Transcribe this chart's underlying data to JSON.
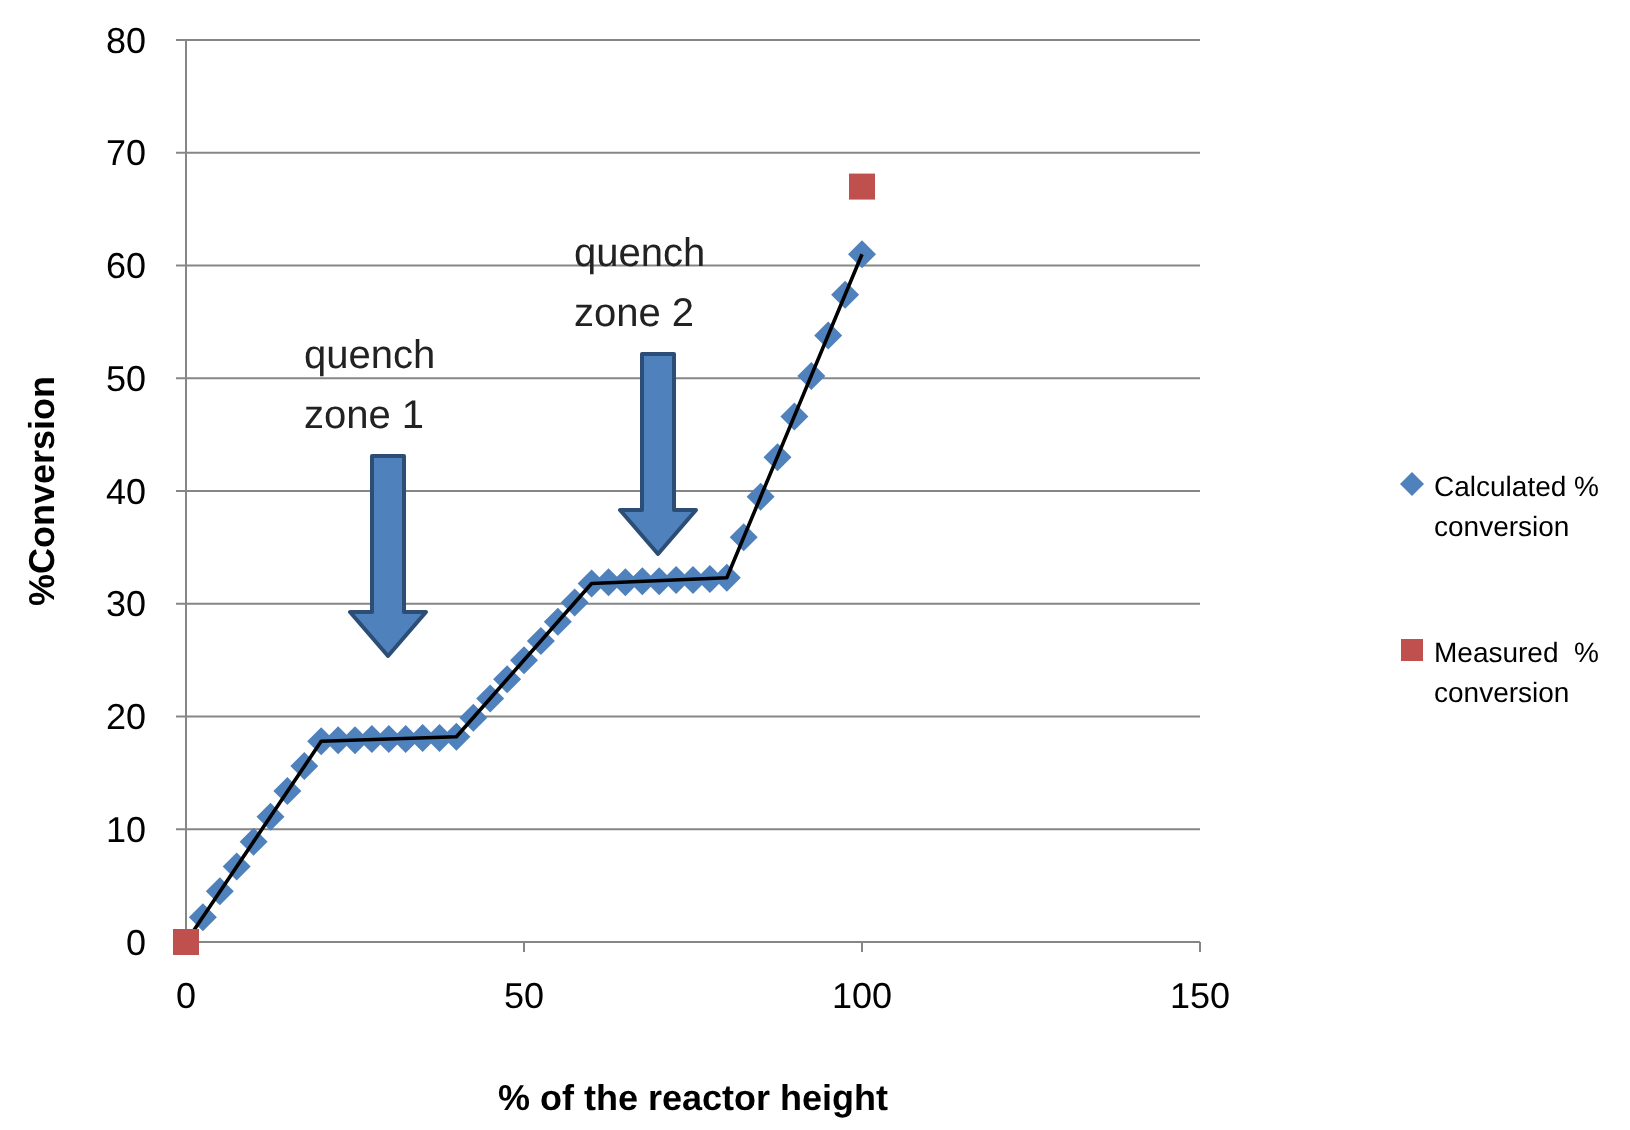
{
  "chart_data": {
    "type": "scatter",
    "xlabel": "% of the reactor height",
    "ylabel": "%Conversion",
    "xlim": [
      0,
      150
    ],
    "xticks": [
      0,
      50,
      100,
      150
    ],
    "ylim": [
      0,
      80
    ],
    "yticks": [
      0,
      10,
      20,
      30,
      40,
      50,
      60,
      70,
      80
    ],
    "grid": "y",
    "legend": "right",
    "series": [
      {
        "name": "Calculated % conversion",
        "marker": "diamond",
        "color": "#4f81bd",
        "x": [
          2.5,
          5,
          7.5,
          10,
          12.5,
          15,
          17.5,
          20,
          22.5,
          25,
          27.5,
          30,
          32.5,
          35,
          37.5,
          40,
          42.5,
          45,
          47.5,
          50,
          52.5,
          55,
          57.5,
          60,
          62.5,
          65,
          67.5,
          70,
          72.5,
          75,
          77.5,
          80,
          82.5,
          85,
          87.5,
          90,
          92.5,
          95,
          97.5,
          100
        ],
        "values": [
          2.2,
          4.5,
          6.7,
          8.9,
          11.1,
          13.4,
          15.6,
          17.8,
          17.9,
          17.9,
          18,
          18,
          18,
          18.1,
          18.1,
          18.2,
          19.9,
          21.6,
          23.3,
          25,
          26.7,
          28.4,
          30.1,
          31.8,
          31.9,
          31.9,
          32,
          32,
          32.1,
          32.1,
          32.2,
          32.3,
          35.9,
          39.5,
          43,
          46.6,
          50.2,
          53.8,
          57.4,
          61
        ]
      },
      {
        "type": "line",
        "marker": "none",
        "line_style": "solid",
        "color": "#000000",
        "x": [
          0,
          20,
          40,
          60,
          80,
          100
        ],
        "values": [
          0,
          17.8,
          18.2,
          31.8,
          32.3,
          61
        ]
      },
      {
        "name": "Measured  % conversion",
        "marker": "square",
        "color": "#c0504d",
        "x": [
          0,
          100
        ],
        "values": [
          0,
          67
        ]
      }
    ],
    "annotations": [
      "quench zone 1",
      "quench zone 2"
    ]
  }
}
